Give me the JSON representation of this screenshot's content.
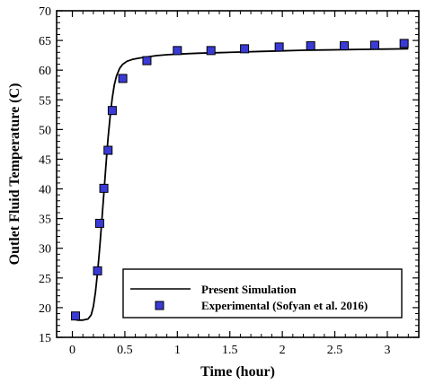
{
  "chart_data": {
    "type": "line",
    "title": "",
    "xlabel": "Time (hour)",
    "ylabel": "Outlet Fluid Temperature (C)",
    "xlim": [
      -0.15,
      3.3
    ],
    "ylim": [
      15,
      70
    ],
    "xticks": [
      0,
      0.5,
      1,
      1.5,
      2,
      2.5,
      3
    ],
    "xtick_labels": [
      "0",
      "0.5",
      "1",
      "1.5",
      "2",
      "2.5",
      "3"
    ],
    "yticks": [
      15,
      20,
      25,
      30,
      35,
      40,
      45,
      50,
      55,
      60,
      65,
      70
    ],
    "ytick_labels": [
      "15",
      "20",
      "25",
      "30",
      "35",
      "40",
      "45",
      "50",
      "55",
      "60",
      "65",
      "70"
    ],
    "grid": false,
    "legend_position": "bottom-right",
    "series": [
      {
        "name": "Present Simulation",
        "kind": "line",
        "color": "#000000",
        "x": [
          0,
          0.05,
          0.1,
          0.15,
          0.18,
          0.2,
          0.22,
          0.24,
          0.26,
          0.28,
          0.3,
          0.32,
          0.34,
          0.36,
          0.38,
          0.4,
          0.42,
          0.45,
          0.48,
          0.52,
          0.57,
          0.63,
          0.7,
          0.8,
          0.9,
          1.0,
          1.2,
          1.4,
          1.6,
          1.8,
          2.0,
          2.2,
          2.4,
          2.6,
          2.8,
          3.0,
          3.2
        ],
        "y": [
          18.1,
          17.9,
          17.9,
          18.1,
          18.8,
          20.2,
          22.6,
          26.0,
          30.0,
          34.5,
          39.3,
          44.0,
          48.5,
          52.3,
          55.3,
          57.5,
          59.0,
          60.3,
          61.0,
          61.5,
          61.8,
          62.0,
          62.2,
          62.45,
          62.6,
          62.7,
          62.85,
          62.95,
          63.05,
          63.15,
          63.25,
          63.35,
          63.4,
          63.45,
          63.5,
          63.55,
          63.6
        ]
      },
      {
        "name": "Experimental (Sofyan et al. 2016)",
        "kind": "scatter",
        "color": "#3a3ad6",
        "x": [
          0.03,
          0.24,
          0.26,
          0.3,
          0.34,
          0.38,
          0.48,
          0.71,
          1.0,
          1.32,
          1.64,
          1.97,
          2.27,
          2.59,
          2.88,
          3.16
        ],
        "y": [
          18.6,
          26.2,
          34.2,
          40.1,
          46.5,
          53.2,
          58.6,
          61.6,
          63.3,
          63.3,
          63.6,
          63.9,
          64.1,
          64.1,
          64.2,
          64.5
        ]
      }
    ]
  }
}
